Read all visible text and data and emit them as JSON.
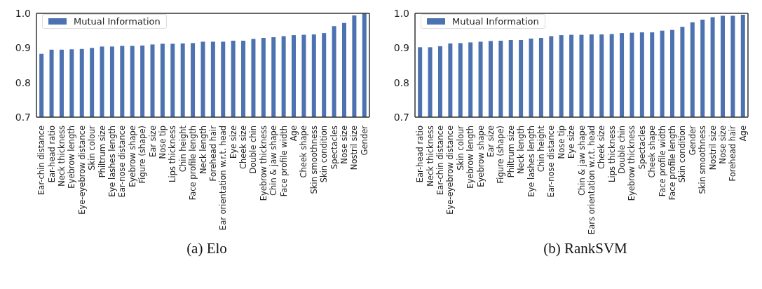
{
  "chart_data": [
    {
      "type": "bar",
      "categories": [
        "Ear-chin distance",
        "Ear-head ratio",
        "Neck thickness",
        "Eyebrow length",
        "Eye-eyebrow distance",
        "Skin colour",
        "Philtrum size",
        "Eye lashes length",
        "Ear-nose distance",
        "Eyebrow shape",
        "Figure (shape)",
        "Ear size",
        "Nose tip",
        "Lips thickness",
        "Chin height",
        "Face profile length",
        "Neck length",
        "Forehead hair",
        "Ear orientation w.r.t. head",
        "Eye size",
        "Cheek size",
        "Double chin",
        "Eyebrow thickness",
        "Chin & jaw shape",
        "Face profile width",
        "Age",
        "Cheek shape",
        "Skin smoothness",
        "Skin condition",
        "Spectacles",
        "Nose size",
        "Nostril size",
        "Gender"
      ],
      "series": [
        {
          "name": "Mutual Information",
          "color": "#4c72b0",
          "values": [
            0.883,
            0.895,
            0.895,
            0.896,
            0.897,
            0.9,
            0.904,
            0.904,
            0.906,
            0.906,
            0.907,
            0.91,
            0.912,
            0.912,
            0.913,
            0.914,
            0.918,
            0.918,
            0.918,
            0.921,
            0.921,
            0.926,
            0.929,
            0.931,
            0.934,
            0.937,
            0.938,
            0.939,
            0.943,
            0.963,
            0.972,
            0.994,
            1.0
          ]
        }
      ],
      "ylim": [
        0.7,
        1.0
      ],
      "yticks": [
        {
          "value": 0.7,
          "label": "0.7"
        },
        {
          "value": 0.8,
          "label": "0.8"
        },
        {
          "value": 0.9,
          "label": "0.9"
        },
        {
          "value": 1.0,
          "label": "1.0"
        }
      ],
      "legend": "top left",
      "annotations": [
        "(a) Elo"
      ]
    },
    {
      "type": "bar",
      "categories": [
        "Ear-head ratio",
        "Neck thickness",
        "Ear-chin distance",
        "Eye-eyebrow distance",
        "Skin colour",
        "Eyebrow length",
        "Eyebrow shape",
        "Ear size",
        "Figure (shape)",
        "Philtrum size",
        "Neck length",
        "Eye lashes length",
        "Chin height",
        "Ear-nose distance",
        "Nose tip",
        "Eye size",
        "Chin & jaw shape",
        "Ears orientation w.r.t. head",
        "Cheek size",
        "Lips thickness",
        "Double chin",
        "Eyebrow thickness",
        "Spectacles",
        "Cheek shape",
        "Face profile width",
        "Face profile length",
        "Skin condition",
        "Gender",
        "Skin smoothness",
        "Nostril size",
        "Nose size",
        "Forehead hair",
        "Age"
      ],
      "series": [
        {
          "name": "Mutual Information",
          "color": "#4c72b0",
          "values": [
            0.902,
            0.902,
            0.905,
            0.913,
            0.914,
            0.916,
            0.918,
            0.92,
            0.921,
            0.923,
            0.923,
            0.927,
            0.929,
            0.934,
            0.937,
            0.938,
            0.938,
            0.939,
            0.939,
            0.94,
            0.943,
            0.944,
            0.945,
            0.945,
            0.95,
            0.952,
            0.961,
            0.974,
            0.982,
            0.989,
            0.993,
            0.993,
            0.996
          ]
        }
      ],
      "ylim": [
        0.7,
        1.0
      ],
      "yticks": [
        {
          "value": 0.7,
          "label": "0.7"
        },
        {
          "value": 0.8,
          "label": "0.8"
        },
        {
          "value": 0.9,
          "label": "0.9"
        },
        {
          "value": 1.0,
          "label": "1.0"
        }
      ],
      "legend": "top left",
      "annotations": [
        "(b) RankSVM"
      ]
    }
  ]
}
